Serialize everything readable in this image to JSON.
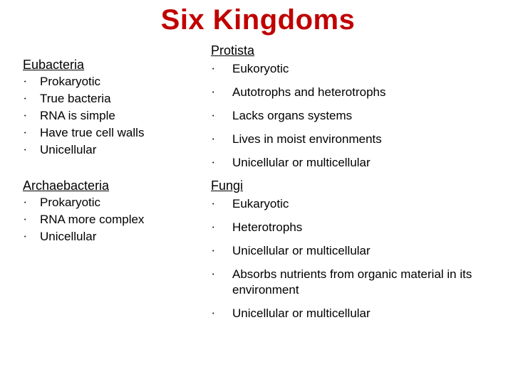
{
  "title_color": "#c00000",
  "text_color": "#000000",
  "background_color": "#ffffff",
  "title": "Six Kingdoms",
  "left": {
    "eubacteria": {
      "heading": "Eubacteria",
      "items": [
        "Prokaryotic",
        "True bacteria",
        "RNA is simple",
        "Have true cell walls",
        "Unicellular"
      ]
    },
    "archaebacteria": {
      "heading": "Archaebacteria",
      "items": [
        "Prokaryotic",
        "RNA more complex",
        "Unicellular"
      ]
    }
  },
  "right": {
    "protista": {
      "heading": "Protista",
      "items": [
        "Eukoryotic",
        "Autotrophs and heterotrophs",
        "Lacks organs systems",
        "Lives in moist environments",
        "Unicellular or multicellular"
      ]
    },
    "fungi": {
      "heading": "Fungi ",
      "items": [
        "Eukaryotic",
        "Heterotrophs",
        "Unicellular or multicellular",
        "Absorbs nutrients from organic material in its environment",
        "Unicellular or multicellular"
      ]
    }
  }
}
